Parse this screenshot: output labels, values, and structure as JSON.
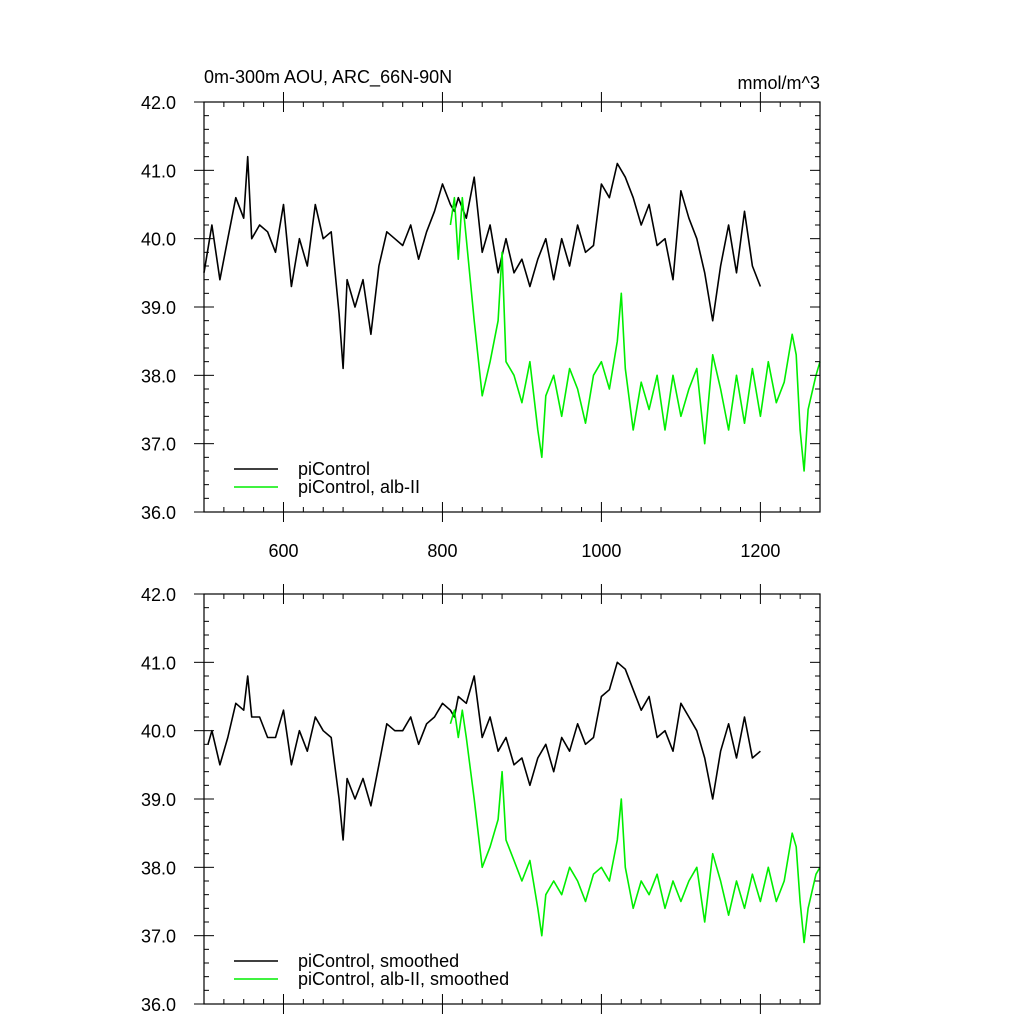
{
  "header": {
    "title": "0m-300m AOU, ARC_66N-90N",
    "units": "mmol/m^3"
  },
  "colors": {
    "control": "#000000",
    "experiment": "#00ee00"
  },
  "chart_data": [
    {
      "type": "line",
      "title": "0m-300m AOU, ARC_66N-90N",
      "xlim": [
        500,
        1275
      ],
      "ylim": [
        36.0,
        42.0
      ],
      "x_ticks": [
        600,
        800,
        1000,
        1200
      ],
      "x_tick_labels": [
        "600",
        "800",
        "1000",
        "1200"
      ],
      "y_ticks": [
        36,
        37,
        38,
        39,
        40,
        41,
        42
      ],
      "y_tick_labels": [
        "36.0",
        "37.0",
        "38.0",
        "39.0",
        "40.0",
        "41.0",
        "42.0"
      ],
      "legend_position": "bottom-left",
      "series": [
        {
          "name": "piControl",
          "color": "#000000",
          "x": [
            500,
            510,
            520,
            530,
            540,
            550,
            555,
            560,
            570,
            580,
            590,
            600,
            610,
            620,
            630,
            640,
            650,
            660,
            670,
            675,
            680,
            690,
            700,
            710,
            720,
            730,
            740,
            750,
            760,
            770,
            780,
            790,
            800,
            810,
            815,
            820,
            830,
            840,
            850,
            860,
            870,
            880,
            890,
            900,
            910,
            920,
            930,
            940,
            950,
            960,
            970,
            980,
            990,
            1000,
            1010,
            1020,
            1030,
            1040,
            1050,
            1060,
            1070,
            1080,
            1090,
            1100,
            1110,
            1120,
            1130,
            1140,
            1150,
            1160,
            1170,
            1180,
            1190,
            1200
          ],
          "y": [
            39.5,
            40.2,
            39.4,
            40.0,
            40.6,
            40.3,
            41.2,
            40.0,
            40.2,
            40.1,
            39.8,
            40.5,
            39.3,
            40.0,
            39.6,
            40.5,
            40.0,
            40.1,
            38.9,
            38.1,
            39.4,
            39.0,
            39.4,
            38.6,
            39.6,
            40.1,
            40.0,
            39.9,
            40.2,
            39.7,
            40.1,
            40.4,
            40.8,
            40.5,
            40.4,
            40.6,
            40.3,
            40.9,
            39.8,
            40.2,
            39.5,
            40.0,
            39.5,
            39.7,
            39.3,
            39.7,
            40.0,
            39.4,
            40.0,
            39.6,
            40.2,
            39.8,
            39.9,
            40.8,
            40.6,
            41.1,
            40.9,
            40.6,
            40.2,
            40.5,
            39.9,
            40.0,
            39.4,
            40.7,
            40.3,
            40.0,
            39.5,
            38.8,
            39.6,
            40.2,
            39.5,
            40.4,
            39.6,
            39.3
          ]
        },
        {
          "name": "piControl, alb-II",
          "color": "#00ee00",
          "x": [
            810,
            815,
            820,
            825,
            830,
            840,
            850,
            860,
            870,
            875,
            880,
            890,
            900,
            910,
            920,
            925,
            930,
            940,
            950,
            960,
            970,
            980,
            990,
            1000,
            1010,
            1020,
            1025,
            1030,
            1040,
            1050,
            1060,
            1070,
            1080,
            1090,
            1100,
            1110,
            1120,
            1130,
            1140,
            1150,
            1160,
            1170,
            1180,
            1190,
            1200,
            1210,
            1220,
            1230,
            1240,
            1245,
            1250,
            1255,
            1260,
            1270,
            1275
          ],
          "y": [
            40.2,
            40.6,
            39.7,
            40.6,
            40.0,
            38.8,
            37.7,
            38.2,
            38.8,
            39.8,
            38.2,
            38.0,
            37.6,
            38.2,
            37.2,
            36.8,
            37.7,
            38.0,
            37.4,
            38.1,
            37.8,
            37.3,
            38.0,
            38.2,
            37.8,
            38.5,
            39.2,
            38.1,
            37.2,
            37.9,
            37.5,
            38.0,
            37.2,
            38.0,
            37.4,
            37.8,
            38.1,
            37.0,
            38.3,
            37.8,
            37.2,
            38.0,
            37.3,
            38.1,
            37.4,
            38.2,
            37.6,
            37.9,
            38.6,
            38.3,
            37.2,
            36.6,
            37.5,
            38.0,
            38.2
          ]
        }
      ]
    },
    {
      "type": "line",
      "xlim": [
        500,
        1275
      ],
      "ylim": [
        36.0,
        42.0
      ],
      "x_ticks": [
        600,
        800,
        1000,
        1200
      ],
      "y_ticks": [
        36,
        37,
        38,
        39,
        40,
        41,
        42
      ],
      "y_tick_labels": [
        "36.0",
        "37.0",
        "38.0",
        "39.0",
        "40.0",
        "41.0",
        "42.0"
      ],
      "legend_position": "bottom-left",
      "series": [
        {
          "name": "piControl, smoothed",
          "color": "#000000",
          "x": [
            505,
            510,
            520,
            530,
            540,
            550,
            555,
            560,
            570,
            580,
            590,
            600,
            610,
            620,
            630,
            640,
            650,
            660,
            670,
            675,
            680,
            690,
            700,
            710,
            720,
            730,
            740,
            750,
            760,
            770,
            780,
            790,
            800,
            810,
            815,
            820,
            830,
            840,
            850,
            860,
            870,
            880,
            890,
            900,
            910,
            920,
            930,
            940,
            950,
            960,
            970,
            980,
            990,
            1000,
            1010,
            1020,
            1030,
            1040,
            1050,
            1060,
            1070,
            1080,
            1090,
            1100,
            1110,
            1120,
            1130,
            1140,
            1150,
            1160,
            1170,
            1180,
            1190,
            1200
          ],
          "y": [
            39.8,
            40.0,
            39.5,
            39.9,
            40.4,
            40.3,
            40.8,
            40.2,
            40.2,
            39.9,
            39.9,
            40.3,
            39.5,
            40.0,
            39.7,
            40.2,
            40.0,
            39.9,
            39.0,
            38.4,
            39.3,
            39.0,
            39.3,
            38.9,
            39.5,
            40.1,
            40.0,
            40.0,
            40.2,
            39.8,
            40.1,
            40.2,
            40.4,
            40.3,
            40.2,
            40.5,
            40.4,
            40.8,
            39.9,
            40.2,
            39.7,
            39.9,
            39.5,
            39.6,
            39.2,
            39.6,
            39.8,
            39.4,
            39.9,
            39.7,
            40.1,
            39.8,
            39.9,
            40.5,
            40.6,
            41.0,
            40.9,
            40.6,
            40.3,
            40.5,
            39.9,
            40.0,
            39.7,
            40.4,
            40.2,
            40.0,
            39.6,
            39.0,
            39.7,
            40.1,
            39.6,
            40.2,
            39.6,
            39.7
          ]
        },
        {
          "name": "piControl, alb-II, smoothed",
          "color": "#00ee00",
          "x": [
            810,
            815,
            820,
            825,
            830,
            840,
            850,
            860,
            870,
            875,
            880,
            890,
            900,
            910,
            920,
            925,
            930,
            940,
            950,
            960,
            970,
            980,
            990,
            1000,
            1010,
            1020,
            1025,
            1030,
            1040,
            1050,
            1060,
            1070,
            1080,
            1090,
            1100,
            1110,
            1120,
            1130,
            1140,
            1150,
            1160,
            1170,
            1180,
            1190,
            1200,
            1210,
            1220,
            1230,
            1240,
            1245,
            1250,
            1255,
            1260,
            1270,
            1275
          ],
          "y": [
            40.1,
            40.3,
            39.9,
            40.3,
            39.9,
            39.0,
            38.0,
            38.3,
            38.7,
            39.4,
            38.4,
            38.1,
            37.8,
            38.1,
            37.4,
            37.0,
            37.6,
            37.8,
            37.6,
            38.0,
            37.8,
            37.5,
            37.9,
            38.0,
            37.8,
            38.4,
            39.0,
            38.0,
            37.4,
            37.8,
            37.6,
            37.9,
            37.4,
            37.8,
            37.5,
            37.8,
            38.0,
            37.2,
            38.2,
            37.8,
            37.3,
            37.8,
            37.4,
            37.9,
            37.5,
            38.0,
            37.5,
            37.8,
            38.5,
            38.3,
            37.5,
            36.9,
            37.4,
            37.9,
            38.0
          ]
        }
      ]
    }
  ]
}
